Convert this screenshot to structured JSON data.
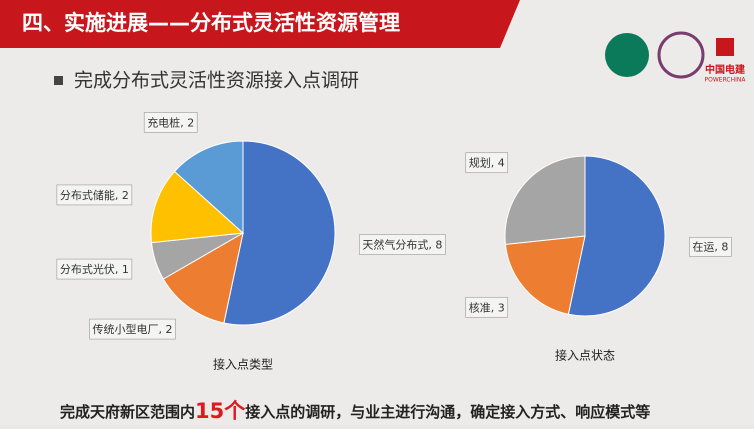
{
  "slide": {
    "title": "四、实施进展——分布式灵活性资源管理",
    "subtitle": "完成分布式灵活性资源接入点调研",
    "logo_text": "中国电建",
    "logo_subtext": "POWERCHINA",
    "footer_before": "完成天府新区范围内",
    "footer_highlight": "15个",
    "footer_after": "接入点的调研，与业主进行沟通，确定接入方式、响应模式等"
  },
  "chart_data": [
    {
      "type": "pie",
      "x_label": "接入点类型",
      "label_separator": ", ",
      "categories": [
        "天然气分布式",
        "传统小型电厂",
        "分布式光伏",
        "分布式储能",
        "充电桩"
      ],
      "values": [
        8,
        2,
        1,
        2,
        2
      ],
      "colors": [
        "#4472c4",
        "#ed7d31",
        "#a5a5a5",
        "#ffc000",
        "#5b9bd5"
      ]
    },
    {
      "type": "pie",
      "x_label": "接入点状态",
      "label_separator": ", ",
      "categories": [
        "在运",
        "核准",
        "规划"
      ],
      "values": [
        8,
        3,
        4
      ],
      "colors": [
        "#4472c4",
        "#ed7d31",
        "#a5a5a5"
      ]
    }
  ]
}
